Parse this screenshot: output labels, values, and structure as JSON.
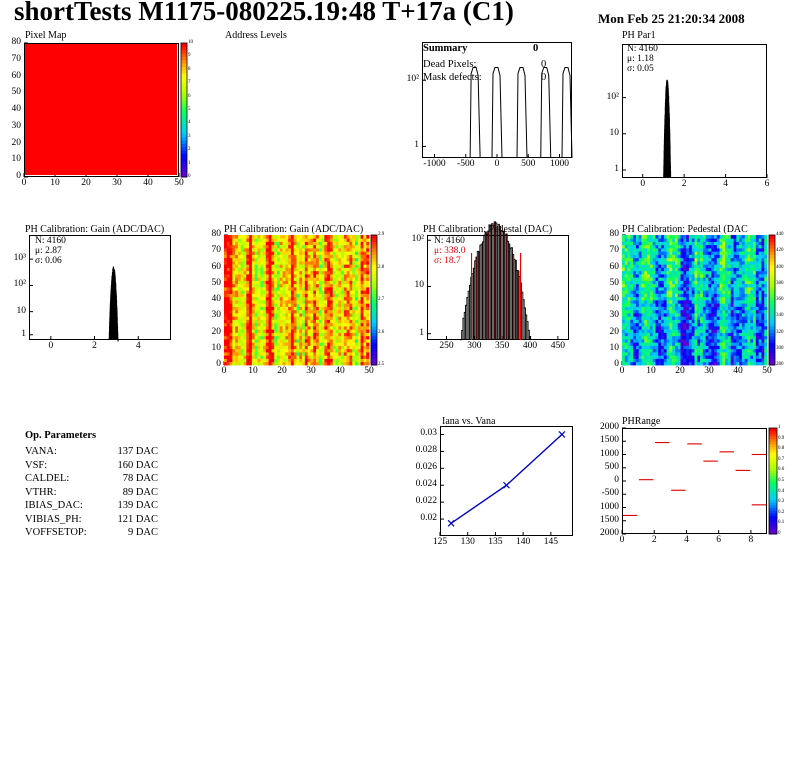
{
  "header": {
    "title": "shortTests M1175-080225.19:48 T+17a (C1)",
    "date": "Mon Feb 25 21:20:34 2008"
  },
  "summary": {
    "title": "Summary",
    "title_value": "0",
    "rows": [
      {
        "label": "Dead Pixels:",
        "value": "0"
      },
      {
        "label": "Mask defects:",
        "value": "0"
      }
    ]
  },
  "op_params": {
    "title": "Op. Parameters",
    "rows": [
      {
        "label": "VANA:",
        "value": "137 DAC"
      },
      {
        "label": "VSF:",
        "value": "160 DAC"
      },
      {
        "label": "CALDEL:",
        "value": "78 DAC"
      },
      {
        "label": "VTHR:",
        "value": "89 DAC"
      },
      {
        "label": "IBIAS_DAC:",
        "value": "139 DAC"
      },
      {
        "label": "VIBIAS_PH:",
        "value": "121 DAC"
      },
      {
        "label": "VOFFSETOP:",
        "value": "9 DAC"
      }
    ]
  },
  "colors": {
    "red": "#ff0000",
    "line": "#0000cc",
    "frame": "#000000"
  },
  "chart_data": [
    {
      "id": "pixelmap",
      "type": "heatmap",
      "title": "Pixel Map",
      "xlim": [
        0,
        52
      ],
      "ylim": [
        0,
        80
      ],
      "xticks": [
        "0",
        "10",
        "20",
        "30",
        "40",
        "50"
      ],
      "yticks": [
        "0",
        "10",
        "20",
        "30",
        "40",
        "50",
        "60",
        "70",
        "80"
      ],
      "fill": "uniform-max",
      "zlim": [
        0,
        10
      ],
      "zticks": [
        "0",
        "1",
        "2",
        "3",
        "4",
        "5",
        "6",
        "7",
        "8",
        "9",
        "10"
      ]
    },
    {
      "id": "addrlevels",
      "type": "bar",
      "title": "Address Levels",
      "xlim": [
        -1200,
        1200
      ],
      "log_y": true,
      "xticks": [
        "-1000",
        "-500",
        "0",
        "500",
        "1000"
      ],
      "yticks": [
        "1",
        "10²"
      ],
      "peaks": [
        -350,
        0,
        400,
        780,
        1120
      ],
      "peak_height": 250
    },
    {
      "id": "phpar1",
      "type": "bar",
      "title": "PH Par1",
      "xlim": [
        -1,
        6
      ],
      "log_y": true,
      "xticks": [
        "0",
        "2",
        "4",
        "6"
      ],
      "yticks": [
        "1",
        "10",
        "10²"
      ],
      "stats": {
        "N": "N: 4160",
        "mean": "μ: 1.18",
        "sigma": "σ: 0.05"
      },
      "mean": 1.18,
      "sigma": 0.05,
      "entries": 4160
    },
    {
      "id": "gain1d",
      "type": "bar",
      "title": "PH Calibration: Gain (ADC/DAC)",
      "xlim": [
        -1,
        5.5
      ],
      "log_y": true,
      "xticks": [
        "0",
        "2",
        "4"
      ],
      "yticks": [
        "1",
        "10",
        "10²",
        "10³"
      ],
      "stats": {
        "N": "N: 4160",
        "mean": "μ: 2.87",
        "sigma": "σ: 0.06"
      },
      "mean": 2.87,
      "sigma": 0.06,
      "entries": 4160
    },
    {
      "id": "gain2d",
      "type": "heatmap",
      "title": "PH Calibration: Gain (ADC/DAC)",
      "xlim": [
        0,
        52
      ],
      "ylim": [
        0,
        80
      ],
      "xticks": [
        "0",
        "10",
        "20",
        "30",
        "40",
        "50"
      ],
      "yticks": [
        "0",
        "10",
        "20",
        "30",
        "40",
        "50",
        "60",
        "70",
        "80"
      ],
      "zticks": [
        "2.5",
        "2.6",
        "2.7",
        "2.8",
        "2.9"
      ]
    },
    {
      "id": "ped1d",
      "type": "bar",
      "title": "PH Calibration: Pedestal (DAC)",
      "xlim": [
        215,
        470
      ],
      "log_y": true,
      "xticks": [
        "250",
        "300",
        "350",
        "400",
        "450"
      ],
      "yticks": [
        "1",
        "10",
        "10²"
      ],
      "stats": {
        "N": "N: 4160",
        "mean": "μ: 338.0",
        "sigma": "σ: 18.7"
      },
      "mean": 338.0,
      "sigma": 18.7,
      "entries": 4160,
      "fit_range": [
        295,
        383
      ]
    },
    {
      "id": "ped2d",
      "type": "heatmap",
      "title": "PH Calibration: Pedestal (DAC",
      "xlim": [
        0,
        52
      ],
      "ylim": [
        0,
        80
      ],
      "xticks": [
        "0",
        "10",
        "20",
        "30",
        "40",
        "50"
      ],
      "yticks": [
        "0",
        "10",
        "20",
        "30",
        "40",
        "50",
        "60",
        "70",
        "80"
      ],
      "zticks": [
        "280",
        "300",
        "320",
        "340",
        "360",
        "380",
        "400",
        "420",
        "440"
      ]
    },
    {
      "id": "ianavana",
      "type": "line",
      "title": "Iana vs. Vana",
      "xlim": [
        125,
        149
      ],
      "ylim": [
        0.018,
        0.031
      ],
      "xticks": [
        "125",
        "130",
        "135",
        "140",
        "145"
      ],
      "yticks": [
        "0.02",
        "0.022",
        "0.024",
        "0.026",
        "0.028",
        "0.03"
      ],
      "x": [
        127,
        137,
        147
      ],
      "y": [
        0.0195,
        0.024,
        0.03
      ]
    },
    {
      "id": "phrange",
      "type": "scatter",
      "title": "PHRange",
      "xlim": [
        0,
        9
      ],
      "ylim": [
        -2000,
        2000
      ],
      "xticks": [
        "0",
        "2",
        "4",
        "6",
        "8"
      ],
      "yticks": [
        "2000",
        "1500",
        "1000",
        "500",
        "0",
        "-500",
        "1000",
        "1500",
        "2000"
      ],
      "zticks": [
        "0",
        "0.1",
        "0.2",
        "0.3",
        "0.4",
        "0.5",
        "0.6",
        "0.7",
        "0.8",
        "0.9",
        "1"
      ],
      "segments": [
        {
          "x": 0.5,
          "y": -1300
        },
        {
          "x": 1.5,
          "y": 50
        },
        {
          "x": 2.5,
          "y": 1450
        },
        {
          "x": 3.5,
          "y": -350
        },
        {
          "x": 4.5,
          "y": 1400
        },
        {
          "x": 5.5,
          "y": 750
        },
        {
          "x": 6.5,
          "y": 1100
        },
        {
          "x": 7.5,
          "y": 400
        },
        {
          "x": 8.5,
          "y": 1000
        },
        {
          "x": 8.5,
          "y": -900
        }
      ]
    }
  ]
}
